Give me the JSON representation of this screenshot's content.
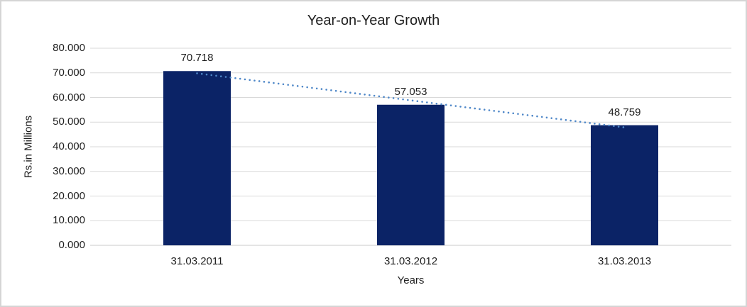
{
  "chart_data": {
    "type": "bar",
    "title": "Year-on-Year Growth",
    "xlabel": "Years",
    "ylabel": "Rs.in Millions",
    "categories": [
      "31.03.2011",
      "31.03.2012",
      "31.03.2013"
    ],
    "values": [
      70.718,
      57.053,
      48.759
    ],
    "data_labels": [
      "70.718",
      "57.053",
      "48.759"
    ],
    "ylim": [
      0,
      80
    ],
    "ytick_step": 10,
    "ytick_labels": [
      "0.000",
      "10.000",
      "20.000",
      "30.000",
      "40.000",
      "50.000",
      "60.000",
      "70.000",
      "80.000"
    ],
    "grid": true,
    "legend": "none",
    "trendline": {
      "type": "linear",
      "style": "dotted",
      "color": "#4E87C8"
    },
    "colors": {
      "bar": "#0B2366",
      "gridline": "#D9D9D9",
      "axis_line": "#C8C8C8",
      "text": "#1f1f1f",
      "frame_border": "#D5D5D5",
      "background": "#FFFFFF"
    }
  }
}
